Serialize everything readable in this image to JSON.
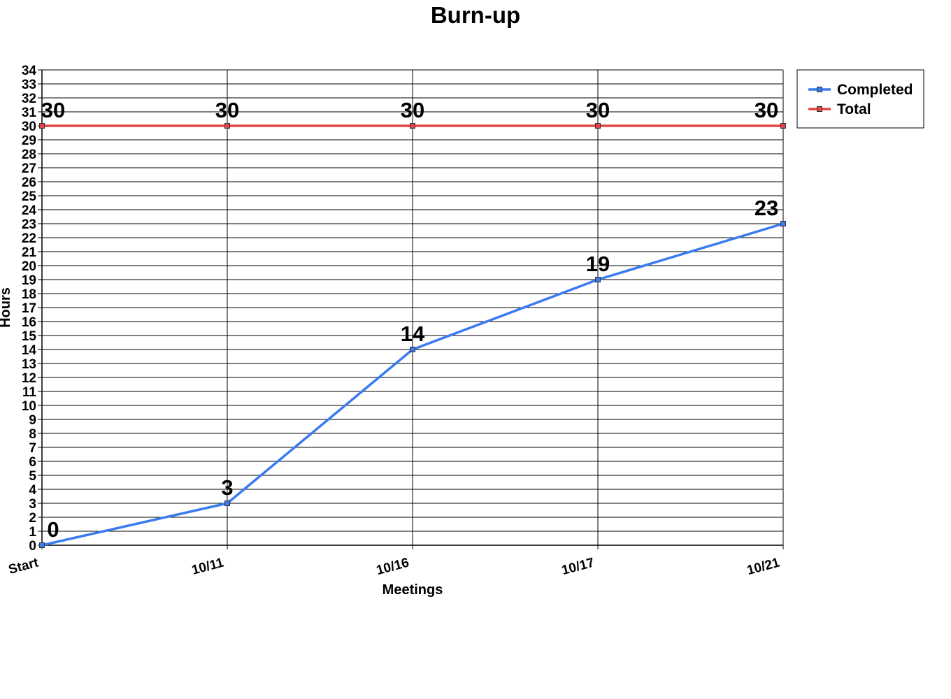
{
  "chart_data": {
    "type": "line",
    "title": "Burn-up",
    "xlabel": "Meetings",
    "ylabel": "Hours",
    "categories": [
      "Start",
      "10/11",
      "10/16",
      "10/17",
      "10/21"
    ],
    "ylim": [
      0,
      34
    ],
    "ytick_step": 1,
    "grid": "horizontal and vertical",
    "legend_position": "right",
    "series": [
      {
        "name": "Completed",
        "values": [
          0,
          3,
          14,
          19,
          23
        ],
        "color": "#3b7bf0",
        "marker": "square"
      },
      {
        "name": "Total",
        "values": [
          30,
          30,
          30,
          30,
          30
        ],
        "color": "#e04646",
        "marker": "square"
      }
    ],
    "data_labels": true
  }
}
